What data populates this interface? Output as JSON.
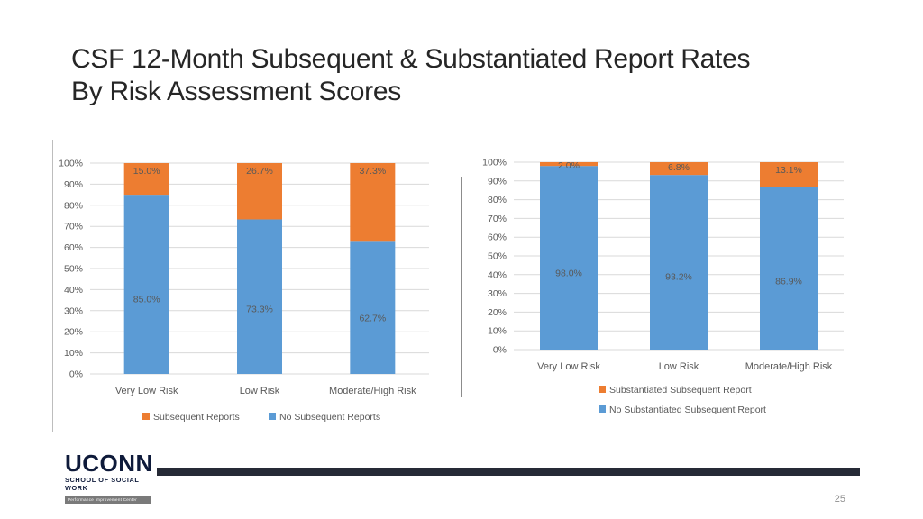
{
  "slide": {
    "title_line1": "CSF 12-Month Subsequent & Substantiated Report Rates",
    "title_line2": "By Risk Assessment Scores",
    "page_number": "25",
    "logo_text": "UCONN",
    "logo_subtext": "SCHOOL OF SOCIAL WORK",
    "logo_center_text": "Performance Improvement Center"
  },
  "colors": {
    "blue": "#5b9bd5",
    "orange": "#ed7d31",
    "grid": "#d9d9d9",
    "text": "#595959"
  },
  "chart_data": [
    {
      "type": "bar",
      "stacked": true,
      "categories": [
        "Very Low Risk",
        "Low Risk",
        "Moderate/High Risk"
      ],
      "series": [
        {
          "name": "No Subsequent Reports",
          "values": [
            85.0,
            73.3,
            62.7
          ],
          "labels": [
            "85.0%",
            "73.3%",
            "62.7%"
          ],
          "color": "#5b9bd5"
        },
        {
          "name": "Subsequent Reports",
          "values": [
            15.0,
            26.7,
            37.3
          ],
          "labels": [
            "15.0%",
            "26.7%",
            "37.3%"
          ],
          "color": "#ed7d31"
        }
      ],
      "ylim": [
        0,
        100
      ],
      "yticks": [
        "0%",
        "10%",
        "20%",
        "30%",
        "40%",
        "50%",
        "60%",
        "70%",
        "80%",
        "90%",
        "100%"
      ],
      "legend": {
        "placement": "bottom",
        "items": [
          "Subsequent Reports",
          "No Subsequent Reports"
        ],
        "layout": "row"
      },
      "grid": true
    },
    {
      "type": "bar",
      "stacked": true,
      "categories": [
        "Very Low Risk",
        "Low Risk",
        "Moderate/High Risk"
      ],
      "series": [
        {
          "name": "No Substantiated Subsequent Report",
          "values": [
            98.0,
            93.2,
            86.9
          ],
          "labels": [
            "98.0%",
            "93.2%",
            "86.9%"
          ],
          "color": "#5b9bd5"
        },
        {
          "name": "Substantiated Subsequent Report",
          "values": [
            2.0,
            6.8,
            13.1
          ],
          "labels": [
            "2.0%",
            "6.8%",
            "13.1%"
          ],
          "color": "#ed7d31"
        }
      ],
      "ylim": [
        0,
        100
      ],
      "yticks": [
        "0%",
        "10%",
        "20%",
        "30%",
        "40%",
        "50%",
        "60%",
        "70%",
        "80%",
        "90%",
        "100%"
      ],
      "legend": {
        "placement": "bottom",
        "items": [
          "Substantiated Subsequent Report",
          "No Substantiated Subsequent Report"
        ],
        "layout": "column"
      },
      "grid": true
    }
  ]
}
